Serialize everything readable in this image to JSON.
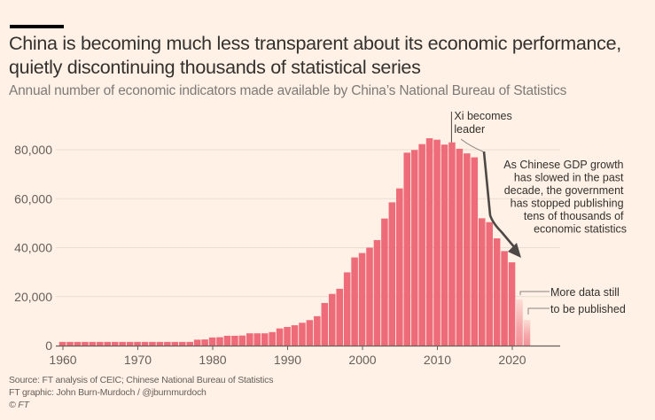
{
  "header": {
    "title": "China is becoming much less transparent about its economic performance, quietly discontinuing thousands of statistical series",
    "subtitle": "Annual number of economic indicators made available by China’s National Bureau of Statistics"
  },
  "colors": {
    "background": "#fff1e5",
    "bar": "#ee6b79",
    "bar_provisional": "#f4a3ad",
    "gridline": "#e8ded4",
    "axis": "#66605c",
    "annotation_line": "#4d4845"
  },
  "chart_data": {
    "type": "bar",
    "title": "China is becoming much less transparent about its economic performance, quietly discontinuing thousands of statistical series",
    "subtitle": "Annual number of economic indicators made available by China’s National Bureau of Statistics",
    "xlabel": "",
    "ylabel": "",
    "ylim": [
      0,
      90000
    ],
    "yticks": [
      0,
      20000,
      40000,
      60000,
      80000
    ],
    "ytick_labels": [
      "0",
      "20,000",
      "40,000",
      "60,000",
      "80,000"
    ],
    "xticks": [
      1960,
      1970,
      1980,
      1990,
      2000,
      2010,
      2020
    ],
    "xtick_labels": [
      "1960",
      "1970",
      "1980",
      "1990",
      "2000",
      "2010",
      "2020"
    ],
    "grid": true,
    "x": [
      1960,
      1961,
      1962,
      1963,
      1964,
      1965,
      1966,
      1967,
      1968,
      1969,
      1970,
      1971,
      1972,
      1973,
      1974,
      1975,
      1976,
      1977,
      1978,
      1979,
      1980,
      1981,
      1982,
      1983,
      1984,
      1985,
      1986,
      1987,
      1988,
      1989,
      1990,
      1991,
      1992,
      1993,
      1994,
      1995,
      1996,
      1997,
      1998,
      1999,
      2000,
      2001,
      2002,
      2003,
      2004,
      2005,
      2006,
      2007,
      2008,
      2009,
      2010,
      2011,
      2012,
      2013,
      2014,
      2015,
      2016,
      2017,
      2018,
      2019,
      2020,
      2021,
      2022
    ],
    "values": [
      1500,
      1500,
      1500,
      1500,
      1500,
      1500,
      1500,
      1500,
      1500,
      1500,
      1500,
      1500,
      1500,
      1500,
      1500,
      1500,
      1500,
      1500,
      2400,
      2500,
      3300,
      3400,
      4000,
      4000,
      4100,
      5000,
      5000,
      5000,
      5500,
      7000,
      7600,
      8300,
      9300,
      10400,
      12000,
      17400,
      21100,
      23200,
      29900,
      36000,
      37800,
      40000,
      43100,
      51900,
      58500,
      64200,
      78800,
      79900,
      82300,
      84700,
      84100,
      82100,
      83000,
      80400,
      78500,
      76900,
      52000,
      50400,
      43800,
      38600,
      34000,
      18900,
      10500
    ],
    "provisional_years": [
      2021,
      2022
    ],
    "annotations": [
      {
        "name": "xi-leader",
        "year": 2012,
        "lines": [
          "Xi becomes",
          "leader"
        ]
      },
      {
        "name": "gdp-note",
        "lines": [
          "As Chinese GDP growth",
          "has slowed in the past",
          "decade, the government",
          "has stopped publishing",
          "tens of thousands of",
          "economic statistics"
        ]
      },
      {
        "name": "more-data",
        "lines": [
          "More data still",
          "to be published"
        ]
      }
    ]
  },
  "footer": {
    "source": "Source: FT analysis of CEIC; Chinese National Bureau of Statistics",
    "credit": "FT graphic: John Burn-Murdoch / @jburnmurdoch",
    "copyright": "© FT"
  }
}
